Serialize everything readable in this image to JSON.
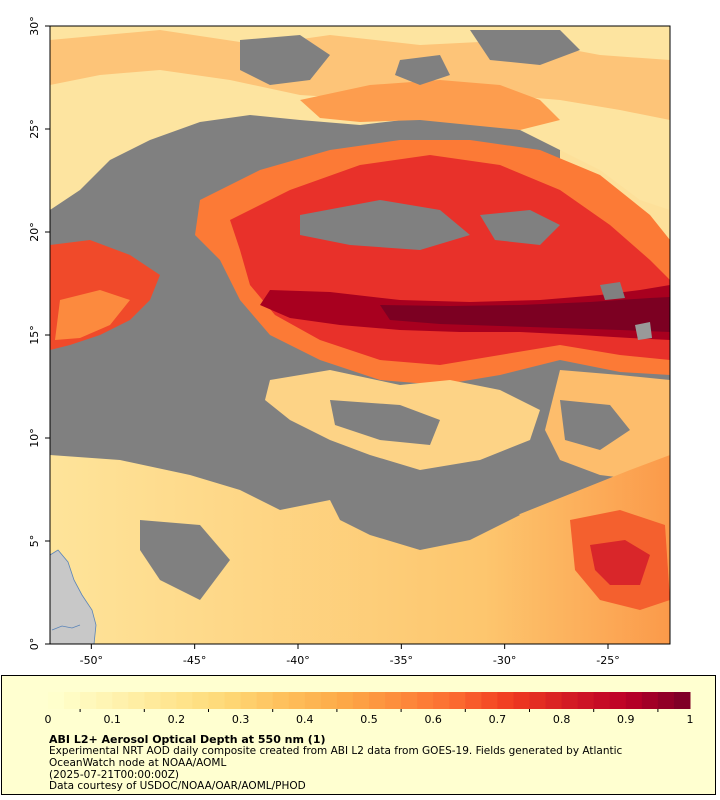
{
  "map": {
    "lat_ticks": [
      "0°",
      "5°",
      "10°",
      "15°",
      "20°",
      "25°",
      "30°"
    ],
    "lon_ticks": [
      "-50°",
      "-45°",
      "-40°",
      "-35°",
      "-30°",
      "-25°"
    ],
    "lon_range": [
      -52,
      -22
    ],
    "lat_range": [
      0,
      30
    ],
    "ocean_color": "#808080",
    "land_color": "#c8c8c8"
  },
  "colorbar": {
    "ticks": [
      "0",
      "0.1",
      "0.2",
      "0.3",
      "0.4",
      "0.5",
      "0.6",
      "0.7",
      "0.8",
      "0.9",
      "1"
    ],
    "min": 0,
    "max": 1,
    "colors": [
      "#ffffcc",
      "#fff3b0",
      "#ffe691",
      "#fed976",
      "#fec05c",
      "#fdaa48",
      "#fd8d3c",
      "#fc6b30",
      "#f03b20",
      "#d41c24",
      "#bd0026",
      "#800026"
    ]
  },
  "legend": {
    "title": "ABI L2+ Aerosol Optical Depth at 550 nm (1)",
    "description": "Experimental NRT AOD daily composite created from ABI L2 data from GOES-19. Fields generated by Atlantic OceanWatch node at NOAA/AOML",
    "date": "(2025-07-21T00:00:00Z)",
    "credit": "Data courtesy of USDOC/NOAA/OAR/AOML/PHOD"
  }
}
